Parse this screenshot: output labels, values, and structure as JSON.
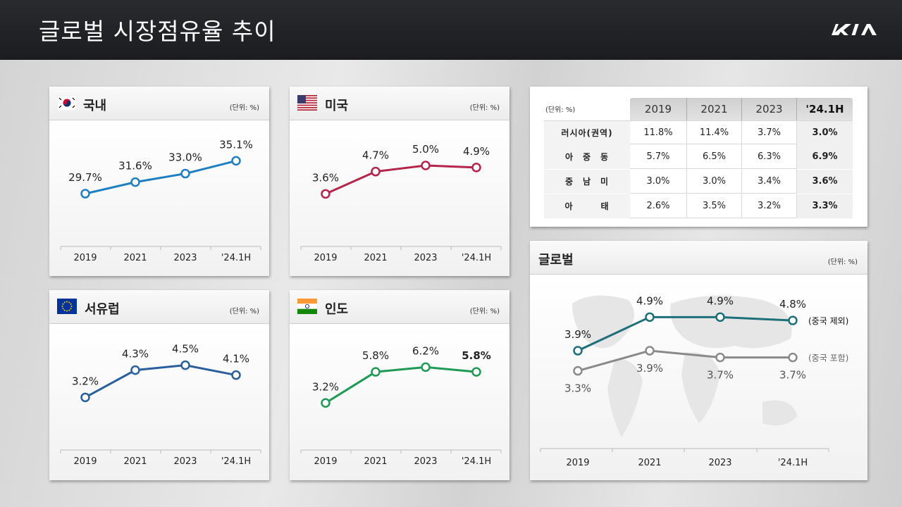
{
  "header": {
    "title": "글로벌 시장점유율 추이",
    "logo": "kia-logo"
  },
  "years": [
    "2019",
    "2021",
    "2023",
    "'24.1H"
  ],
  "unit": "(단위: %)",
  "colors": {
    "korea": "#1f7fc3",
    "usa": "#b5244b",
    "europe": "#2a5f9e",
    "india": "#1e9a55",
    "global_ex": "#1d6f7a",
    "global_in": "#8a8a8a"
  },
  "chart_data": [
    {
      "type": "line",
      "title": "국내",
      "categories": [
        "2019",
        "2021",
        "2023",
        "'24.1H"
      ],
      "series": [
        {
          "values": [
            29.7,
            31.6,
            33.0,
            35.1
          ]
        }
      ],
      "labels": [
        "29.7%",
        "31.6%",
        "33.0%",
        "35.1%"
      ]
    },
    {
      "type": "line",
      "title": "미국",
      "categories": [
        "2019",
        "2021",
        "2023",
        "'24.1H"
      ],
      "series": [
        {
          "values": [
            3.6,
            4.7,
            5.0,
            4.9
          ]
        }
      ],
      "labels": [
        "3.6%",
        "4.7%",
        "5.0%",
        "4.9%"
      ]
    },
    {
      "type": "line",
      "title": "서유럽",
      "categories": [
        "2019",
        "2021",
        "2023",
        "'24.1H"
      ],
      "series": [
        {
          "values": [
            3.2,
            4.3,
            4.5,
            4.1
          ]
        }
      ],
      "labels": [
        "3.2%",
        "4.3%",
        "4.5%",
        "4.1%"
      ]
    },
    {
      "type": "line",
      "title": "인도",
      "categories": [
        "2019",
        "2021",
        "2023",
        "'24.1H"
      ],
      "series": [
        {
          "values": [
            3.2,
            5.8,
            6.2,
            5.8
          ]
        }
      ],
      "labels": [
        "3.2%",
        "5.8%",
        "6.2%",
        "5.8%"
      ]
    },
    {
      "type": "line",
      "title": "글로벌",
      "categories": [
        "2019",
        "2021",
        "2023",
        "'24.1H"
      ],
      "series": [
        {
          "name": "(중국 제외)",
          "values": [
            3.9,
            4.9,
            4.9,
            4.8
          ],
          "labels": [
            "3.9%",
            "4.9%",
            "4.9%",
            "4.8%"
          ]
        },
        {
          "name": "(중국 포함)",
          "values": [
            3.3,
            3.9,
            3.7,
            3.7
          ],
          "labels": [
            "3.3%",
            "3.9%",
            "3.7%",
            "3.7%"
          ]
        }
      ]
    },
    {
      "type": "table",
      "unit": "(단위: %)",
      "columns": [
        "2019",
        "2021",
        "2023",
        "'24.1H"
      ],
      "rows": [
        {
          "label": "러시아(권역)",
          "values": [
            "11.8%",
            "11.4%",
            "3.7%",
            "3.0%"
          ]
        },
        {
          "label": "아　중　동",
          "values": [
            "5.7%",
            "6.5%",
            "6.3%",
            "6.9%"
          ]
        },
        {
          "label": "중　남　미",
          "values": [
            "3.0%",
            "3.0%",
            "3.4%",
            "3.6%"
          ]
        },
        {
          "label": "아　　　태",
          "values": [
            "2.6%",
            "3.5%",
            "3.2%",
            "3.3%"
          ]
        }
      ]
    }
  ]
}
